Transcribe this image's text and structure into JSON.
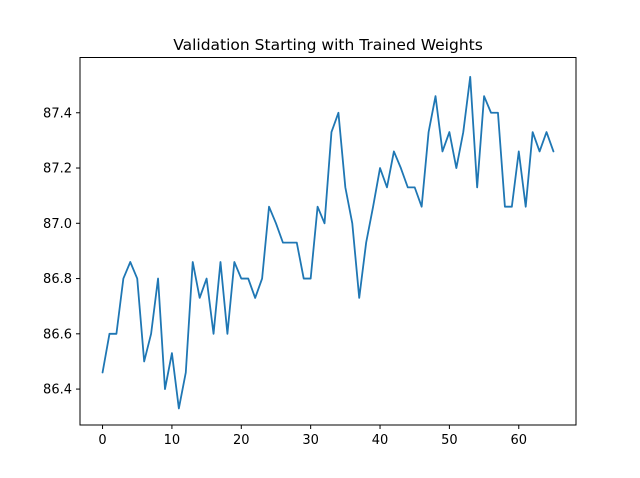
{
  "chart_data": {
    "type": "line",
    "title": "Validation Starting with Trained Weights",
    "xlabel": "",
    "ylabel": "",
    "xlim": [
      -3.25,
      68.25
    ],
    "ylim": [
      86.27,
      87.6
    ],
    "xticks": [
      0,
      10,
      20,
      30,
      40,
      50,
      60
    ],
    "yticks": [
      86.4,
      86.6,
      86.8,
      87.0,
      87.2,
      87.4
    ],
    "xtick_labels": [
      "0",
      "10",
      "20",
      "30",
      "40",
      "50",
      "60"
    ],
    "ytick_labels": [
      "86.4",
      "86.6",
      "86.8",
      "87.0",
      "87.2",
      "87.4"
    ],
    "grid": false,
    "legend": "none",
    "series": [
      {
        "color": "#1f77b4",
        "x": [
          0,
          1,
          2,
          3,
          4,
          5,
          6,
          7,
          8,
          9,
          10,
          11,
          12,
          13,
          14,
          15,
          16,
          17,
          18,
          19,
          20,
          21,
          22,
          23,
          24,
          25,
          26,
          27,
          28,
          29,
          30,
          31,
          32,
          33,
          34,
          35,
          36,
          37,
          38,
          39,
          40,
          41,
          42,
          43,
          44,
          45,
          46,
          47,
          48,
          49,
          50,
          51,
          52,
          53,
          54,
          55,
          56,
          57,
          58,
          59,
          60,
          61,
          62,
          63,
          64,
          65
        ],
        "values": [
          86.46,
          86.6,
          86.6,
          86.8,
          86.86,
          86.8,
          86.5,
          86.6,
          86.8,
          86.4,
          86.53,
          86.33,
          86.46,
          86.86,
          86.73,
          86.8,
          86.6,
          86.86,
          86.6,
          86.86,
          86.8,
          86.8,
          86.73,
          86.8,
          87.06,
          87.0,
          86.93,
          86.93,
          86.93,
          86.8,
          86.8,
          87.06,
          87.0,
          87.33,
          87.4,
          87.13,
          87.0,
          86.73,
          86.93,
          87.06,
          87.2,
          87.13,
          87.26,
          87.2,
          87.13,
          87.13,
          87.06,
          87.33,
          87.46,
          87.26,
          87.33,
          87.2,
          87.33,
          87.53,
          87.13,
          87.46,
          87.4,
          87.4,
          87.06,
          87.06,
          87.26,
          87.06,
          87.33,
          87.26,
          87.33,
          87.26
        ]
      }
    ]
  }
}
